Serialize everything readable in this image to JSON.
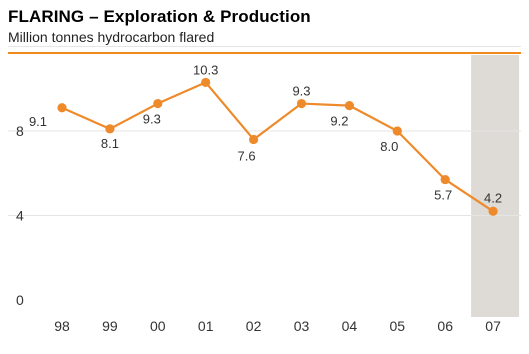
{
  "chart_data": {
    "type": "line",
    "title": "FLARING – Exploration & Production",
    "subtitle": "Million tonnes hydrocarbon flared",
    "categories": [
      "98",
      "99",
      "00",
      "01",
      "02",
      "03",
      "04",
      "05",
      "06",
      "07"
    ],
    "series": [
      {
        "values": [
          9.1,
          8.1,
          9.3,
          10.3,
          7.6,
          9.3,
          9.2,
          8.0,
          5.7,
          4.2
        ]
      }
    ],
    "data_labels": [
      "9.1",
      "8.1",
      "9.3",
      "10.3",
      "7.6",
      "9.3",
      "9.2",
      "8.0",
      "5.7",
      "4.2"
    ],
    "yticks": [
      0,
      4,
      8
    ],
    "ylim": [
      0,
      12
    ],
    "grid": "horizontal",
    "highlight_category": "07",
    "colors": {
      "line": "#ee8a2a",
      "rule": "#f08a1c",
      "grid": "#e5e5e5",
      "highlight": "#dedbd6"
    }
  }
}
